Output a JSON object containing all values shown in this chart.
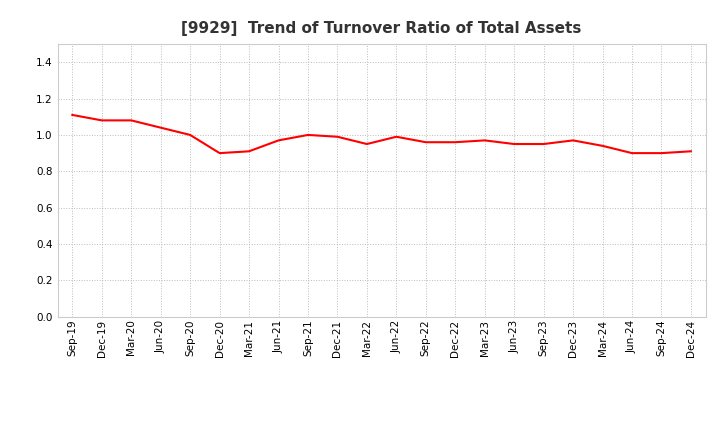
{
  "title": "[9929]  Trend of Turnover Ratio of Total Assets",
  "x_labels": [
    "Sep-19",
    "Dec-19",
    "Mar-20",
    "Jun-20",
    "Sep-20",
    "Dec-20",
    "Mar-21",
    "Jun-21",
    "Sep-21",
    "Dec-21",
    "Mar-22",
    "Jun-22",
    "Sep-22",
    "Dec-22",
    "Mar-23",
    "Jun-23",
    "Sep-23",
    "Dec-23",
    "Mar-24",
    "Jun-24",
    "Sep-24",
    "Dec-24"
  ],
  "y_values": [
    1.11,
    1.08,
    1.08,
    1.04,
    1.0,
    0.9,
    0.91,
    0.97,
    1.0,
    0.99,
    0.95,
    0.99,
    0.96,
    0.96,
    0.97,
    0.95,
    0.95,
    0.97,
    0.94,
    0.9,
    0.9,
    0.91
  ],
  "line_color": "#FF0000",
  "line_width": 1.5,
  "ylim": [
    0.0,
    1.5
  ],
  "yticks": [
    0.0,
    0.2,
    0.4,
    0.6,
    0.8,
    1.0,
    1.2,
    1.4
  ],
  "grid_color": "#bbbbbb",
  "background_color": "#ffffff",
  "title_fontsize": 11,
  "tick_fontsize": 7.5,
  "title_color": "#333333"
}
